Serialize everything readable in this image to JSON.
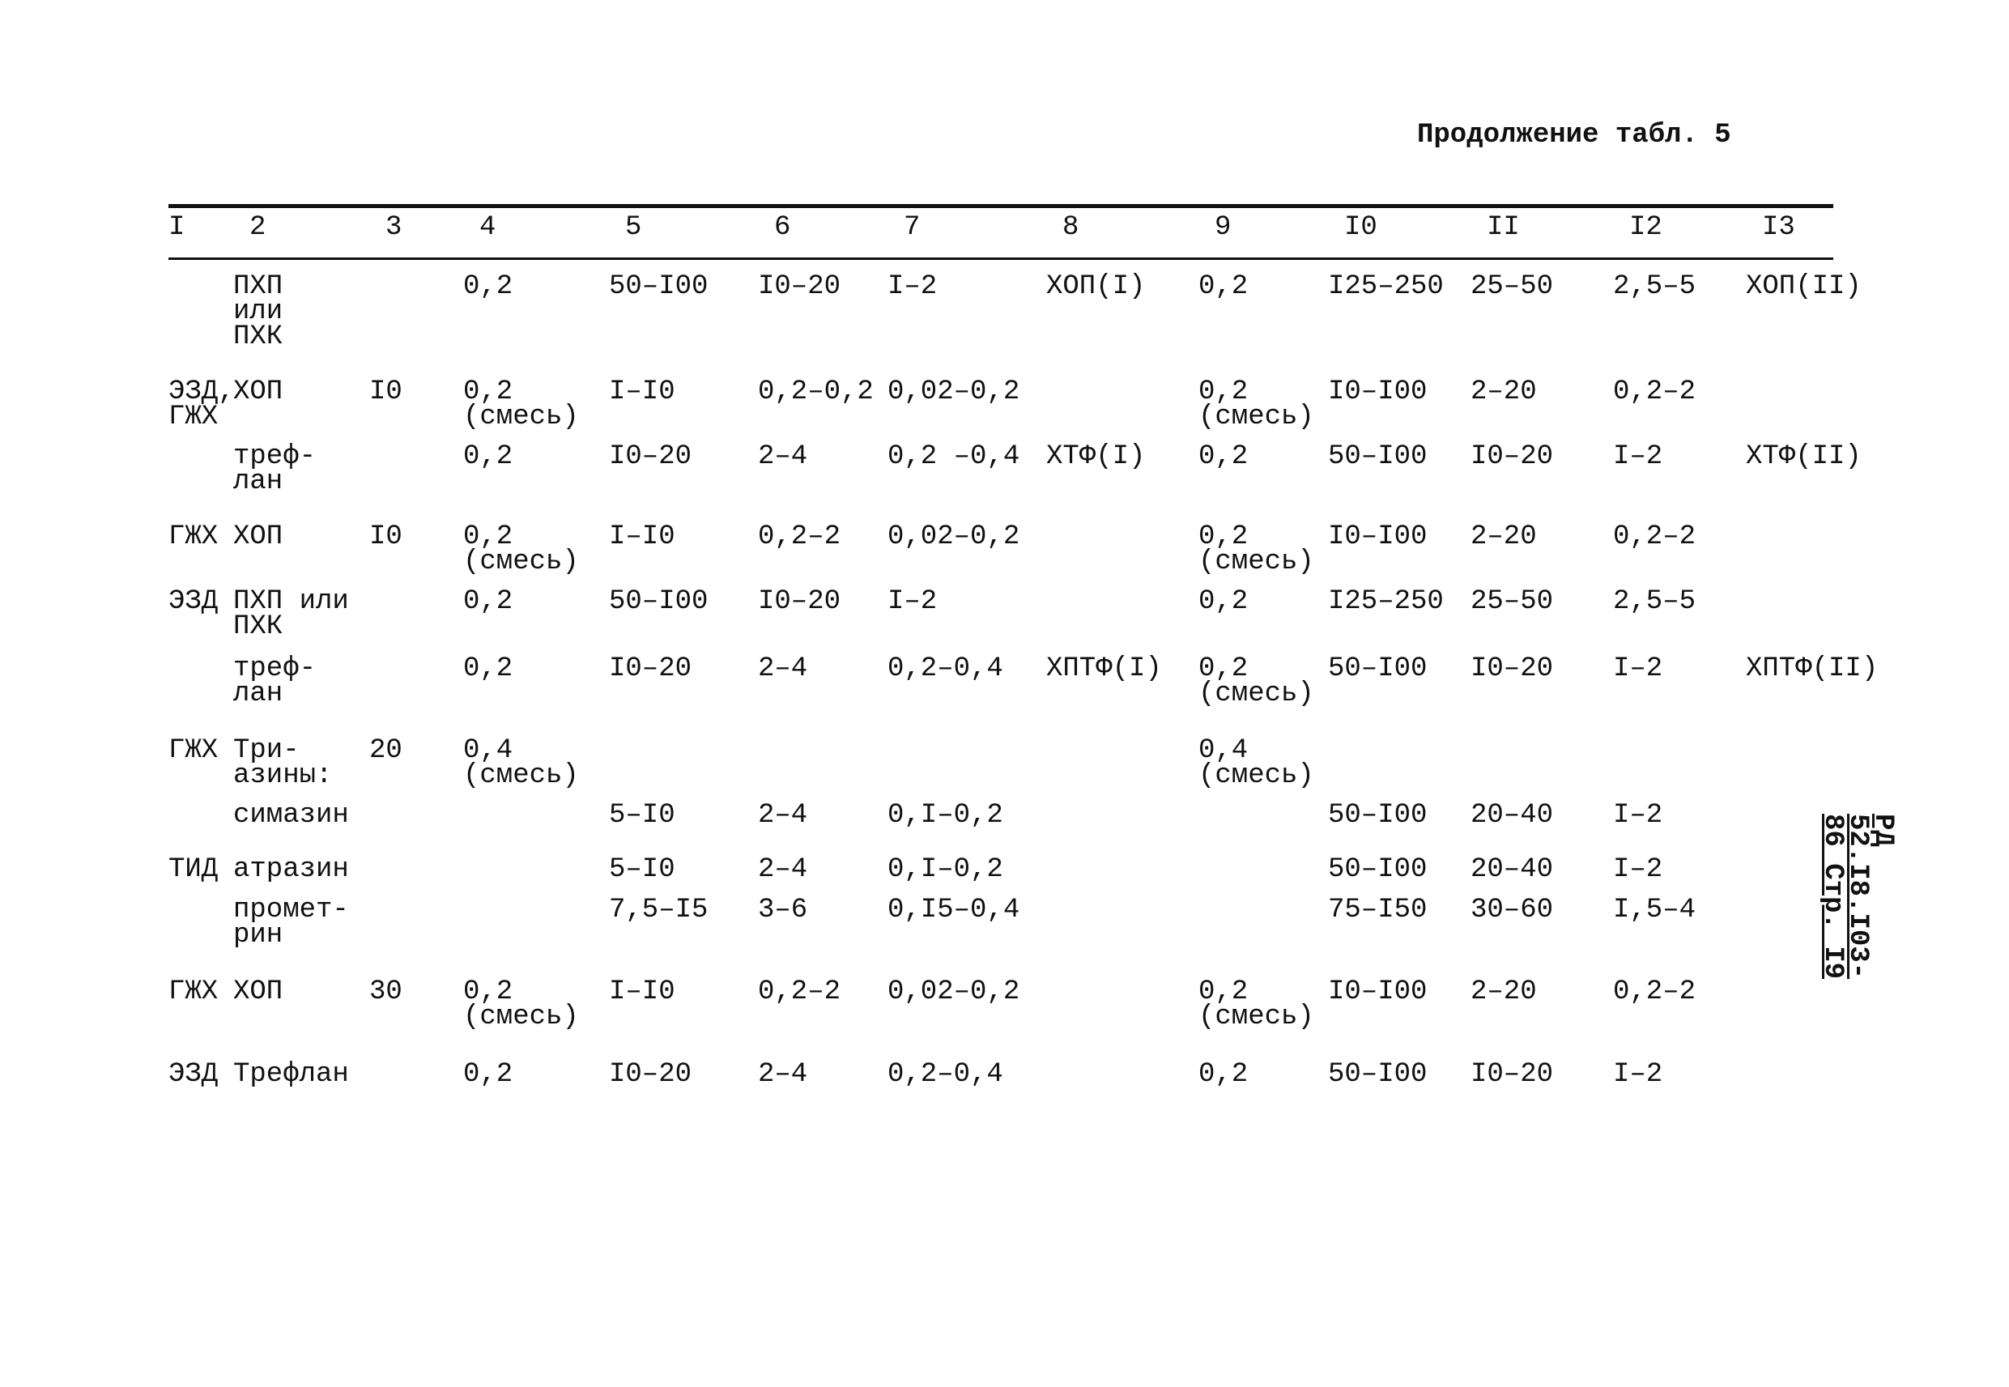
{
  "header": {
    "caption": "Продолжение табл. 5"
  },
  "table": {
    "columns": [
      "I",
      "2",
      "3",
      "4",
      "5",
      "6",
      "7",
      "8",
      "9",
      "I0",
      "II",
      "I2",
      "I3"
    ],
    "rows": [
      [
        null,
        "ПХП\nили\nПХК",
        null,
        "0,2",
        "50–I00",
        "I0–20",
        "I–2",
        "ХОП(I)",
        "0,2",
        "I25–250",
        "25–50",
        "2,5–5",
        "ХОП(II)"
      ],
      [
        "ЭЗД,\nГЖХ",
        "ХОП",
        "I0",
        "0,2\n(смесь)",
        "I–I0",
        "0,2–0,2",
        "0,02–0,2",
        null,
        "0,2\n(смесь)",
        "I0–I00",
        "2–20",
        "0,2–2",
        null
      ],
      [
        null,
        "треф-\nлан",
        null,
        "0,2",
        "I0–20",
        "2–4",
        "0,2 –0,4",
        "ХТФ(I)",
        "0,2",
        "50–I00",
        "I0–20",
        "I–2",
        "ХТФ(II)"
      ],
      [
        "ГЖХ",
        "ХОП",
        "I0",
        "0,2\n(смесь)",
        "I–I0",
        "0,2–2",
        "0,02–0,2",
        null,
        "0,2\n(смесь)",
        "I0–I00",
        "2–20",
        "0,2–2",
        null
      ],
      [
        "ЭЗД",
        "ПХП или\nПХК",
        null,
        "0,2",
        "50–I00",
        "I0–20",
        "I–2",
        null,
        "0,2",
        "I25–250",
        "25–50",
        "2,5–5",
        null
      ],
      [
        null,
        "треф-\nлан",
        null,
        "0,2",
        "I0–20",
        "2–4",
        "0,2–0,4",
        "ХПТФ(I)",
        "0,2\n(смесь)",
        "50–I00",
        "I0–20",
        "I–2",
        "ХПТФ(II)"
      ],
      [
        "ГЖХ",
        "Три-\nазины:",
        "20",
        "0,4\n(смесь)",
        null,
        null,
        null,
        null,
        "0,4\n(смесь)",
        null,
        null,
        null,
        null
      ],
      [
        null,
        "симазин",
        null,
        null,
        "5–I0",
        "2–4",
        "0,I–0,2",
        null,
        null,
        "50–I00",
        "20–40",
        "I–2",
        null
      ],
      [
        "ТИД",
        "атразин",
        null,
        null,
        "5–I0",
        "2–4",
        "0,I–0,2",
        null,
        null,
        "50–I00",
        "20–40",
        "I–2",
        null
      ],
      [
        null,
        "промет-\nрин",
        null,
        null,
        "7,5–I5",
        "3–6",
        "0,I5–0,4",
        null,
        null,
        "75–I50",
        "30–60",
        "I,5–4",
        null
      ],
      [
        "ГЖХ",
        "ХОП",
        "30",
        "0,2\n(смесь)",
        "I–I0",
        "0,2–2",
        "0,02–0,2",
        null,
        "0,2\n(смесь)",
        "I0–I00",
        "2–20",
        "0,2–2",
        null
      ],
      [
        "ЭЗД",
        "Трефлан",
        null,
        "0,2",
        "I0–20",
        "2–4",
        "0,2–0,4",
        null,
        "0,2",
        "50–I00",
        "I0–20",
        "I–2",
        null
      ]
    ]
  },
  "side_note": "РД 52.I8.I03-86 Стр. I9"
}
